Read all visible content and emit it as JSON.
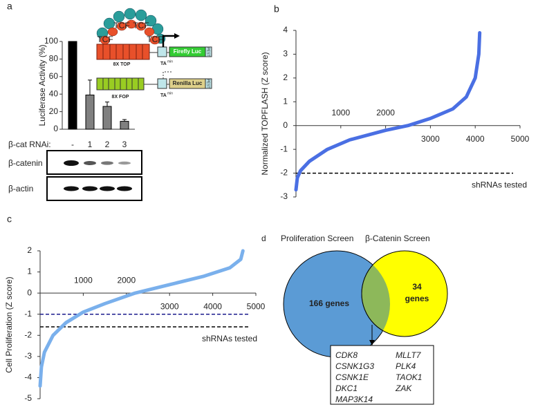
{
  "chart_data": [
    {
      "type": "bar",
      "panel": "a",
      "ylabel": "Luciferase Activity (%)",
      "row_label": "β-cat RNAi:",
      "categories": [
        "-",
        "1",
        "2",
        "3"
      ],
      "values": [
        100,
        39,
        26,
        9
      ],
      "errors": [
        null,
        17,
        5,
        2
      ],
      "colors": [
        "#000000",
        "#808080",
        "#808080",
        "#808080"
      ],
      "ylim": [
        0,
        100
      ],
      "yticks": [
        0,
        20,
        40,
        60,
        80,
        100
      ]
    },
    {
      "type": "line",
      "panel": "b",
      "ylabel": "Normalized TOPFLASH (Z score)",
      "xlabel": "shRNAs tested",
      "color": "#4a6fe3",
      "x": [
        0,
        30,
        100,
        300,
        700,
        1200,
        2000,
        2500,
        3000,
        3500,
        3800,
        4000,
        4080,
        4100
      ],
      "values": [
        -2.7,
        -2.2,
        -1.9,
        -1.5,
        -1.0,
        -0.6,
        -0.2,
        0.0,
        0.3,
        0.7,
        1.2,
        2.0,
        3.0,
        3.9
      ],
      "xlim": [
        0,
        5000
      ],
      "xticks": [
        1000,
        2000,
        3000,
        4000,
        5000
      ],
      "ylim": [
        -3,
        4
      ],
      "yticks": [
        -3,
        -2,
        -1,
        0,
        1,
        2,
        3,
        4
      ],
      "reference_lines": [
        {
          "value": -2,
          "color": "#000000"
        }
      ]
    },
    {
      "type": "line",
      "panel": "c",
      "ylabel": "Cell Proliferation (Z score)",
      "xlabel": "shRNAs tested",
      "color": "#7ab0ec",
      "x": [
        0,
        30,
        100,
        300,
        600,
        1000,
        1500,
        2200,
        3000,
        3800,
        4400,
        4650,
        4700
      ],
      "values": [
        -4.4,
        -3.5,
        -2.8,
        -2.0,
        -1.4,
        -0.9,
        -0.5,
        0.0,
        0.4,
        0.8,
        1.2,
        1.6,
        2.0
      ],
      "xlim": [
        0,
        5000
      ],
      "xticks": [
        1000,
        2000,
        3000,
        4000,
        5000
      ],
      "ylim": [
        -5,
        2
      ],
      "yticks": [
        -5,
        -4,
        -3,
        -2,
        -1,
        0,
        1,
        2
      ],
      "reference_lines": [
        {
          "value": -1,
          "color": "#1a1a8c"
        },
        {
          "value": -1.6,
          "color": "#000000"
        }
      ]
    }
  ],
  "blot": {
    "rows": [
      "β-catenin",
      "β-actin"
    ]
  },
  "diagram": {
    "tcf": "TCF",
    "top": "8X TOP",
    "fop": "8X FOP",
    "ta": "TA",
    "ta_sup": "min",
    "firefly": "Firefly Luc",
    "renilla": "Renilla Luc",
    "pest": "PEST"
  },
  "venn": {
    "panel": "d",
    "sets": [
      {
        "name": "Proliferation Screen",
        "label": "166 genes"
      },
      {
        "name": "β-Catenin Screen",
        "label_lines": [
          "34",
          "genes"
        ]
      }
    ],
    "genes": [
      [
        "CDK8",
        "CSNK1G3",
        "CSNK1E",
        "DKC1",
        "MAP3K14"
      ],
      [
        "MLLT7",
        "PLK4",
        "TAOK1",
        "ZAK"
      ]
    ]
  }
}
